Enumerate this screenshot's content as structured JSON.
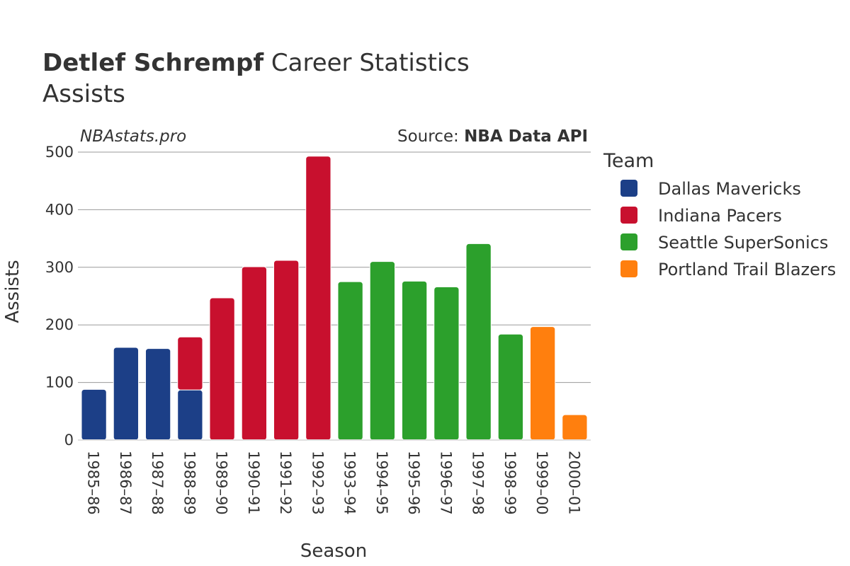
{
  "title": {
    "name": "Detlef Schrempf",
    "rest": " Career Statistics",
    "subtitle": "Assists"
  },
  "watermark": "NBAstats.pro",
  "source": {
    "prefix": "Source: ",
    "name": "NBA Data API"
  },
  "legend": {
    "title": "Team",
    "placement": "right"
  },
  "chart_data": {
    "type": "bar",
    "stacked": true,
    "xlabel": "Season",
    "ylabel": "Assists",
    "ylim": [
      0,
      500
    ],
    "yticks": [
      0,
      100,
      200,
      300,
      400,
      500
    ],
    "grid": true,
    "categories": [
      "1985–86",
      "1986–87",
      "1987–88",
      "1988–89",
      "1989–90",
      "1990–91",
      "1991–92",
      "1992–93",
      "1993–94",
      "1994–95",
      "1995–96",
      "1996–97",
      "1997–98",
      "1998–99",
      "1999–00",
      "2000–01"
    ],
    "series": [
      {
        "name": "Dallas Mavericks",
        "color": "#1c3f87",
        "values": [
          88,
          161,
          159,
          87,
          0,
          0,
          0,
          0,
          0,
          0,
          0,
          0,
          0,
          0,
          0,
          0
        ]
      },
      {
        "name": "Indiana Pacers",
        "color": "#c8102e",
        "values": [
          0,
          0,
          0,
          92,
          247,
          301,
          312,
          493,
          0,
          0,
          0,
          0,
          0,
          0,
          0,
          0
        ]
      },
      {
        "name": "Seattle SuperSonics",
        "color": "#2ca02c",
        "values": [
          0,
          0,
          0,
          0,
          0,
          0,
          0,
          0,
          275,
          310,
          276,
          266,
          341,
          184,
          0,
          0
        ]
      },
      {
        "name": "Portland Trail Blazers",
        "color": "#ff7f0e",
        "values": [
          0,
          0,
          0,
          0,
          0,
          0,
          0,
          0,
          0,
          0,
          0,
          0,
          0,
          0,
          197,
          44
        ]
      }
    ]
  }
}
